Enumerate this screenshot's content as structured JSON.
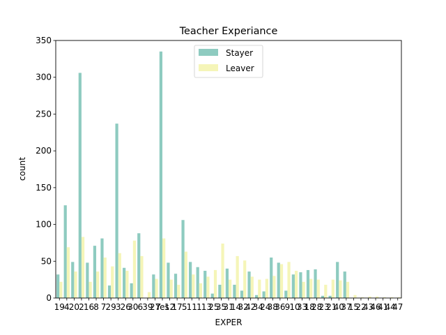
{
  "chart_data": {
    "type": "bar",
    "title": "Teacher Experiance",
    "xlabel": "EXPER",
    "ylabel": "count",
    "ylim": [
      0,
      350
    ],
    "yticks": [
      0,
      50,
      100,
      150,
      200,
      250,
      300,
      350
    ],
    "legend": "top-center",
    "grid": false,
    "categories": [
      "19",
      "4",
      "20",
      "2",
      "16",
      "8",
      "7",
      "29",
      "3",
      "26",
      "30",
      "6",
      "39",
      "27",
      "Yes",
      "12",
      "17",
      "5",
      "11",
      "1",
      "13",
      "25",
      "35",
      "31",
      "14",
      "32",
      "42",
      "34",
      "24",
      "38",
      "36",
      "9",
      "10",
      "33",
      "18",
      "28",
      "23",
      "21",
      "40",
      "37",
      "15",
      "22",
      "43",
      "46",
      "41",
      "44",
      "47"
    ],
    "series": [
      {
        "name": "Stayer",
        "color": "#8ecbc0",
        "values": [
          32,
          126,
          49,
          306,
          48,
          71,
          81,
          17,
          237,
          41,
          20,
          88,
          0,
          32,
          335,
          48,
          33,
          106,
          49,
          42,
          37,
          6,
          18,
          40,
          18,
          10,
          36,
          4,
          9,
          55,
          48,
          10,
          32,
          35,
          38,
          39,
          3,
          3,
          49,
          36,
          0,
          0,
          0,
          0,
          0,
          0,
          0
        ]
      },
      {
        "name": "Leaver",
        "color": "#f5f5b8",
        "values": [
          22,
          69,
          36,
          83,
          22,
          36,
          55,
          43,
          61,
          37,
          78,
          57,
          8,
          26,
          81,
          25,
          18,
          63,
          32,
          20,
          29,
          38,
          74,
          25,
          57,
          51,
          29,
          25,
          26,
          30,
          46,
          49,
          37,
          22,
          26,
          25,
          18,
          25,
          24,
          22,
          4,
          1,
          2,
          2,
          1,
          1,
          1
        ]
      }
    ]
  }
}
